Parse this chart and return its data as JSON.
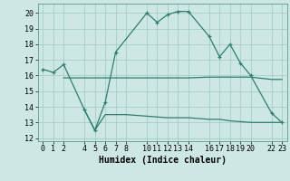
{
  "line1_x": [
    0,
    1,
    2,
    4,
    5,
    6,
    7,
    10,
    11,
    12,
    13,
    14,
    16,
    17,
    18,
    19,
    20,
    22,
    23
  ],
  "line1_y": [
    16.4,
    16.2,
    16.7,
    13.8,
    12.5,
    14.3,
    17.5,
    20.0,
    19.4,
    19.9,
    20.1,
    20.1,
    18.5,
    17.2,
    18.0,
    16.8,
    16.0,
    13.6,
    13.0
  ],
  "line2_x": [
    2,
    4,
    5,
    6,
    7,
    8,
    10,
    11,
    12,
    13,
    14,
    16,
    17,
    18,
    19,
    20,
    22,
    23
  ],
  "line2_y": [
    15.85,
    15.85,
    15.85,
    15.85,
    15.85,
    15.85,
    15.85,
    15.85,
    15.85,
    15.85,
    15.85,
    15.9,
    15.9,
    15.9,
    15.9,
    15.9,
    15.75,
    15.75
  ],
  "line3_x": [
    4,
    5,
    6,
    7,
    8,
    10,
    11,
    12,
    13,
    14,
    16,
    17,
    18,
    19,
    20,
    22,
    23
  ],
  "line3_y": [
    13.8,
    12.5,
    13.5,
    13.5,
    13.5,
    13.4,
    13.35,
    13.3,
    13.3,
    13.3,
    13.2,
    13.2,
    13.1,
    13.05,
    13.0,
    13.0,
    13.0
  ],
  "line_color": "#2e7d6e",
  "bg_color": "#cde8e4",
  "grid_color": "#a0c8c3",
  "xlabel": "Humidex (Indice chaleur)",
  "xlim": [
    -0.5,
    23.5
  ],
  "ylim": [
    11.8,
    20.6
  ],
  "yticks": [
    12,
    13,
    14,
    15,
    16,
    17,
    18,
    19,
    20
  ],
  "xticks": [
    0,
    1,
    2,
    4,
    5,
    6,
    7,
    8,
    10,
    11,
    12,
    13,
    14,
    16,
    17,
    18,
    19,
    20,
    22,
    23
  ],
  "tick_fontsize": 6,
  "xlabel_fontsize": 7
}
